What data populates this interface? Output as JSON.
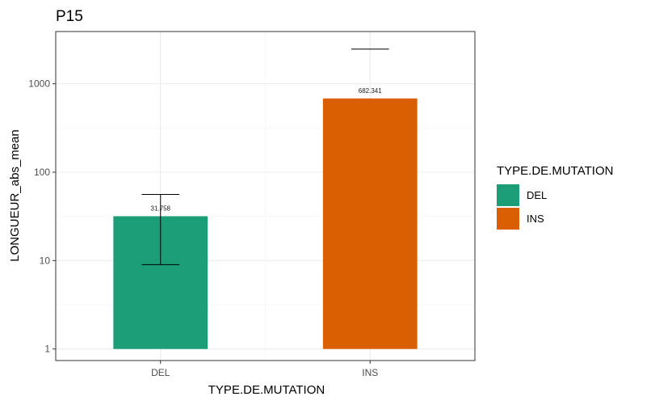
{
  "chart_data": {
    "type": "bar",
    "title": "P15",
    "xlabel": "TYPE.DE.MUTATION",
    "ylabel": "LONGUEUR_abs_mean",
    "yscale": "log10",
    "ylim": [
      0.74,
      3900
    ],
    "yticks": [
      1,
      10,
      100,
      1000
    ],
    "ytick_labels": [
      "1",
      "10",
      "100",
      "1000"
    ],
    "grid": true,
    "categories": [
      "DEL",
      "INS"
    ],
    "values": [
      31.758,
      682.341
    ],
    "value_labels": [
      "31.758",
      "682.341"
    ],
    "error_bars": [
      {
        "low": 9,
        "high": 56
      },
      {
        "low": null,
        "high": 2470
      }
    ],
    "colors": [
      "#1b9e77",
      "#d95f02"
    ],
    "legend": {
      "title": "TYPE.DE.MUTATION",
      "position": "right",
      "entries": [
        "DEL",
        "INS"
      ]
    }
  }
}
